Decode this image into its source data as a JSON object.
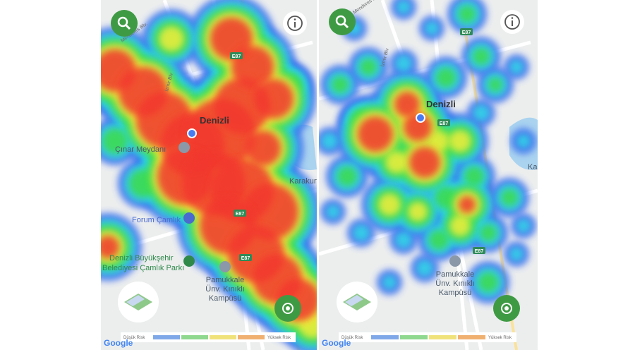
{
  "panels": [
    {
      "city": "Denizli",
      "labels": [
        "Çınar Meydanı",
        "Karakurt",
        "Forum Çamlık"
      ],
      "park": [
        "Denizli Büyükşehir",
        "Belediyesi Çamlık Parkı"
      ],
      "campus": [
        "Pamukkale",
        "Ünv. Kınıklı",
        "Kampüsü"
      ],
      "roads": [
        "Menderes Blv.",
        "İzmir Blv",
        "E87",
        "E87",
        "E87"
      ],
      "legend": {
        "low": "Düşük Risk",
        "high": "Yüksek Risk"
      },
      "logo": "Google"
    },
    {
      "city": "Denizli",
      "labels": [
        "Ka"
      ],
      "campus": [
        "Pamukkale",
        "Ünv. Kınıklı",
        "Kampüsü"
      ],
      "roads": [
        "Menderes Blv.",
        "İzmir Blv",
        "E87",
        "E87",
        "E87"
      ],
      "legend": {
        "low": "Düşük Risk",
        "high": "Yüksek Risk"
      },
      "logo": "Google"
    }
  ]
}
